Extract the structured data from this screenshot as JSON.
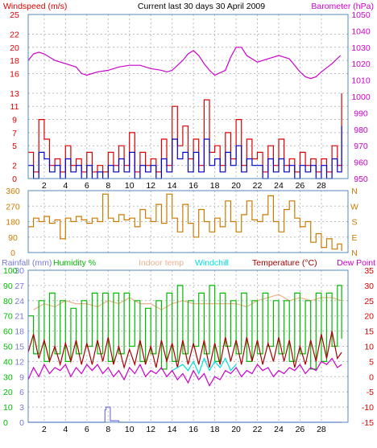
{
  "header": {
    "left": "Windspeed (m/s)",
    "center": "Current last 30 days 30 April 2009",
    "right": "Barometer (hPa)"
  },
  "colors": {
    "wind": "#0000cc",
    "gust": "#dd0000",
    "barometer": "#cc00cc",
    "direction": "#cc7a00",
    "rain": "#7777dd",
    "humidity": "#00bb00",
    "indoor": "#f0b090",
    "windchill": "#00dddd",
    "temperature": "#aa0000",
    "dewpoint": "#cc00cc",
    "grid": "#bbbbbb",
    "frame": "#5588bb"
  },
  "chart_data": [
    {
      "type": "line",
      "panel": "wind-barometer",
      "x_ticks": [
        2,
        4,
        6,
        8,
        10,
        12,
        14,
        16,
        18,
        20,
        22,
        24,
        26,
        28
      ],
      "xlim": [
        0.5,
        30.5
      ],
      "y_left": {
        "label": "Windspeed (m/s)",
        "ticks": [
          0,
          2,
          5,
          7,
          9,
          11,
          13,
          16,
          18,
          20,
          22,
          25
        ],
        "lim": [
          0,
          25
        ]
      },
      "y_right": {
        "label": "Barometer (hPa)",
        "ticks": [
          950,
          960,
          970,
          980,
          990,
          1000,
          1010,
          1020,
          1030,
          1040,
          1050
        ],
        "lim": [
          950,
          1050
        ]
      },
      "series": [
        {
          "name": "Barometer",
          "axis": "right",
          "x": [
            0.5,
            1,
            1.5,
            2,
            3,
            4,
            5,
            5.5,
            6,
            7,
            8,
            9,
            10,
            11,
            12,
            13,
            13.5,
            14,
            15,
            15.5,
            16,
            16.5,
            17,
            17.5,
            18,
            19,
            19.5,
            20,
            20.5,
            21,
            22,
            23,
            24,
            25,
            25.5,
            26,
            26.5,
            27,
            27.5,
            28,
            29,
            29.8
          ],
          "y": [
            1022,
            1026,
            1027,
            1026,
            1022,
            1020,
            1018,
            1014,
            1013,
            1015,
            1016,
            1018,
            1019,
            1019,
            1017,
            1016,
            1015,
            1016,
            1022,
            1026,
            1028,
            1025,
            1020,
            1016,
            1013,
            1016,
            1024,
            1030,
            1030,
            1025,
            1021,
            1023,
            1025,
            1023,
            1019,
            1015,
            1012,
            1011,
            1012,
            1015,
            1020,
            1025
          ]
        },
        {
          "name": "Gust",
          "axis": "left",
          "x": [
            0.5,
            1,
            1.5,
            2,
            2.5,
            3,
            3.5,
            4,
            4.5,
            5,
            5.5,
            6,
            6.5,
            7,
            7.5,
            8,
            8.5,
            9,
            9.5,
            10,
            10.5,
            11,
            11.5,
            12,
            12.5,
            13,
            13.5,
            14,
            14.5,
            15,
            15.5,
            16,
            16.5,
            17,
            17.5,
            18,
            18.5,
            19,
            19.5,
            20,
            20.5,
            21,
            21.5,
            22,
            22.5,
            23,
            23.5,
            24,
            24.5,
            25,
            25.5,
            26,
            26.5,
            27,
            27.5,
            28,
            28.5,
            29,
            29.5,
            29.9
          ],
          "y": [
            4,
            1,
            9,
            6,
            2,
            3,
            1,
            5,
            2,
            3,
            1,
            4,
            1,
            2,
            1,
            4,
            2,
            5,
            2,
            7,
            1,
            4,
            2,
            3,
            1,
            6,
            2,
            11,
            5,
            8,
            3,
            6,
            2,
            12,
            4,
            5,
            2,
            7,
            3,
            9,
            2,
            6,
            3,
            4,
            1,
            5,
            2,
            6,
            2,
            3,
            1,
            4,
            2,
            3,
            1,
            3,
            1,
            5,
            2,
            13
          ]
        },
        {
          "name": "Wind",
          "axis": "left",
          "x": [
            0.5,
            1,
            1.5,
            2,
            2.5,
            3,
            3.5,
            4,
            4.5,
            5,
            5.5,
            6,
            6.5,
            7,
            7.5,
            8,
            8.5,
            9,
            9.5,
            10,
            10.5,
            11,
            11.5,
            12,
            12.5,
            13,
            13.5,
            14,
            14.5,
            15,
            15.5,
            16,
            16.5,
            17,
            17.5,
            18,
            18.5,
            19,
            19.5,
            20,
            20.5,
            21,
            21.5,
            22,
            22.5,
            23,
            23.5,
            24,
            24.5,
            25,
            25.5,
            26,
            26.5,
            27,
            27.5,
            28,
            28.5,
            29,
            29.5,
            29.9
          ],
          "y": [
            2,
            0,
            4,
            3,
            1,
            2,
            0,
            3,
            1,
            2,
            0,
            2,
            0,
            1,
            0,
            2,
            1,
            3,
            1,
            4,
            0,
            2,
            1,
            2,
            0,
            3,
            1,
            6,
            3,
            4,
            1,
            4,
            1,
            6,
            2,
            3,
            1,
            4,
            2,
            5,
            1,
            3,
            2,
            2,
            0,
            3,
            1,
            3,
            1,
            2,
            0,
            2,
            1,
            2,
            0,
            2,
            0,
            3,
            1,
            8
          ]
        }
      ]
    },
    {
      "type": "line",
      "panel": "direction",
      "xlim": [
        0.5,
        30.5
      ],
      "y_left": {
        "ticks": [
          0,
          90,
          180,
          270,
          360
        ],
        "lim": [
          0,
          360
        ]
      },
      "y_right": {
        "ticks": [
          "N",
          "E",
          "S",
          "W",
          "N"
        ]
      },
      "series": [
        {
          "name": "Direction",
          "x": [
            0.5,
            1,
            1.5,
            2,
            2.5,
            3,
            3.5,
            4,
            4.5,
            5,
            5.5,
            6,
            6.5,
            7,
            7.5,
            8,
            8.5,
            9,
            9.5,
            10,
            10.5,
            11,
            11.5,
            12,
            12.5,
            13,
            13.5,
            14,
            14.5,
            15,
            15.5,
            16,
            16.5,
            17,
            17.5,
            18,
            18.5,
            19,
            19.5,
            20,
            20.5,
            21,
            21.5,
            22,
            22.5,
            23,
            23.5,
            24,
            24.5,
            25,
            25.5,
            26,
            26.5,
            27,
            27.5,
            28,
            28.5,
            29,
            29.5,
            29.9
          ],
          "y": [
            150,
            200,
            180,
            210,
            170,
            190,
            80,
            200,
            180,
            210,
            190,
            170,
            200,
            180,
            340,
            200,
            180,
            220,
            190,
            200,
            150,
            250,
            200,
            180,
            280,
            170,
            340,
            200,
            120,
            280,
            170,
            90,
            250,
            180,
            120,
            200,
            150,
            300,
            180,
            120,
            220,
            300,
            190,
            180,
            220,
            330,
            180,
            120,
            250,
            300,
            200,
            150,
            180,
            60,
            110,
            30,
            80,
            20,
            50,
            10
          ]
        }
      ]
    },
    {
      "type": "line",
      "panel": "humidity-temperature",
      "xlim": [
        0.5,
        30.5
      ],
      "y_left": {
        "ticks": [
          0,
          3,
          6,
          9,
          12,
          15,
          18,
          21,
          24,
          27,
          30
        ],
        "lim": [
          0,
          30
        ],
        "labels": [
          "Rainfall (mm)",
          "Humidity %"
        ]
      },
      "y_left_humidity": {
        "ticks": [
          0,
          10,
          20,
          30,
          40,
          50,
          60,
          70,
          80,
          90,
          100
        ]
      },
      "y_right": {
        "ticks": [
          -15,
          -10,
          -5,
          0,
          5,
          10,
          15,
          20,
          25,
          30,
          35
        ],
        "lim": [
          -15,
          35
        ]
      },
      "legend": [
        "Rainfall (mm)",
        "Humidity %",
        "Indoor temp",
        "Windchill",
        "Temperature (°C)",
        "Dew Point"
      ],
      "series": [
        {
          "name": "Indoor temp",
          "axis": "right",
          "x": [
            1,
            2,
            3,
            4,
            5,
            6,
            7,
            8,
            9,
            10,
            11,
            12,
            13,
            14,
            15,
            16,
            17,
            18,
            19,
            20,
            21,
            22,
            23,
            24,
            25,
            26,
            27,
            28,
            29,
            29.9
          ],
          "y": [
            22,
            24,
            23,
            25,
            24,
            24,
            23,
            25,
            24,
            26,
            24,
            24,
            22,
            24,
            25,
            24,
            24,
            24,
            24,
            24,
            23,
            25,
            26,
            27,
            25,
            26,
            25,
            26,
            26,
            25
          ]
        },
        {
          "name": "Humidity %",
          "axis": "left-humidity",
          "x": [
            0.5,
            1,
            1.5,
            2,
            2.5,
            3,
            3.5,
            4,
            4.5,
            5,
            5.5,
            6,
            6.5,
            7,
            7.5,
            8,
            8.5,
            9,
            9.5,
            10,
            10.5,
            11,
            11.5,
            12,
            12.5,
            13,
            13.5,
            14,
            14.5,
            15,
            15.5,
            16,
            16.5,
            17,
            17.5,
            18,
            18.5,
            19,
            19.5,
            20,
            20.5,
            21,
            21.5,
            22,
            22.5,
            23,
            23.5,
            24,
            24.5,
            25,
            25.5,
            26,
            26.5,
            27,
            27.5,
            28,
            28.5,
            29,
            29.5,
            29.9
          ],
          "y": [
            70,
            45,
            80,
            40,
            85,
            45,
            80,
            40,
            75,
            45,
            80,
            50,
            85,
            45,
            85,
            40,
            85,
            45,
            85,
            50,
            80,
            40,
            75,
            45,
            80,
            35,
            85,
            40,
            90,
            45,
            80,
            50,
            85,
            45,
            90,
            40,
            85,
            50,
            80,
            45,
            85,
            40,
            80,
            45,
            85,
            50,
            80,
            45,
            80,
            40,
            85,
            45,
            80,
            35,
            85,
            40,
            85,
            50,
            90,
            55
          ]
        },
        {
          "name": "Temperature (°C)",
          "axis": "right",
          "x": [
            0.5,
            1,
            1.5,
            2,
            2.5,
            3,
            3.5,
            4,
            4.5,
            5,
            5.5,
            6,
            6.5,
            7,
            7.5,
            8,
            8.5,
            9,
            9.5,
            10,
            10.5,
            11,
            11.5,
            12,
            12.5,
            13,
            13.5,
            14,
            14.5,
            15,
            15.5,
            16,
            16.5,
            17,
            17.5,
            18,
            18.5,
            19,
            19.5,
            20,
            20.5,
            21,
            21.5,
            22,
            22.5,
            23,
            23.5,
            24,
            24.5,
            25,
            25.5,
            26,
            26.5,
            27,
            27.5,
            28,
            28.5,
            29,
            29.5,
            29.9
          ],
          "y": [
            8,
            14,
            6,
            12,
            5,
            10,
            4,
            11,
            5,
            12,
            4,
            11,
            4,
            12,
            5,
            13,
            4,
            10,
            3,
            9,
            4,
            12,
            4,
            10,
            3,
            12,
            5,
            11,
            3,
            12,
            4,
            11,
            4,
            12,
            3,
            11,
            4,
            13,
            5,
            12,
            4,
            13,
            5,
            12,
            4,
            11,
            5,
            13,
            5,
            12,
            3,
            10,
            4,
            12,
            5,
            14,
            6,
            15,
            6,
            8
          ]
        },
        {
          "name": "Windchill",
          "axis": "right",
          "x": [
            14,
            14.5,
            15,
            15.5,
            16,
            16.5,
            17,
            17.5,
            18,
            18.5,
            19,
            19.5,
            20
          ],
          "y": [
            2,
            3,
            4,
            2,
            5,
            1,
            6,
            2,
            5,
            3,
            6,
            2,
            4
          ]
        },
        {
          "name": "Dew Point",
          "axis": "right",
          "x": [
            0.5,
            1,
            1.5,
            2,
            2.5,
            3,
            3.5,
            4,
            4.5,
            5,
            5.5,
            6,
            6.5,
            7,
            7.5,
            8,
            8.5,
            9,
            9.5,
            10,
            10.5,
            11,
            11.5,
            12,
            12.5,
            13,
            13.5,
            14,
            14.5,
            15,
            15.5,
            16,
            16.5,
            17,
            17.5,
            18,
            18.5,
            19,
            19.5,
            20,
            20.5,
            21,
            21.5,
            22,
            22.5,
            23,
            23.5,
            24,
            24.5,
            25,
            25.5,
            26,
            26.5,
            27,
            27.5,
            28,
            28.5,
            29,
            29.5,
            29.9
          ],
          "y": [
            -1,
            3,
            0,
            4,
            1,
            3,
            2,
            4,
            0,
            3,
            1,
            4,
            2,
            4,
            1,
            3,
            0,
            2,
            -1,
            3,
            1,
            4,
            0,
            2,
            1,
            3,
            0,
            2,
            -1,
            1,
            -2,
            2,
            -1,
            1,
            -3,
            0,
            -1,
            2,
            1,
            3,
            0,
            2,
            1,
            4,
            2,
            3,
            0,
            2,
            1,
            3,
            2,
            4,
            1,
            3,
            2,
            5,
            4,
            6,
            3,
            4
          ]
        },
        {
          "name": "Rainfall (mm)",
          "axis": "left",
          "x": [
            0.5,
            7.6,
            7.7,
            7.8,
            8,
            8.2,
            8.4,
            8.6,
            9,
            29.9
          ],
          "y": [
            0,
            0,
            2.5,
            3,
            3,
            0.3,
            0.3,
            0.3,
            0,
            0
          ]
        }
      ]
    }
  ]
}
